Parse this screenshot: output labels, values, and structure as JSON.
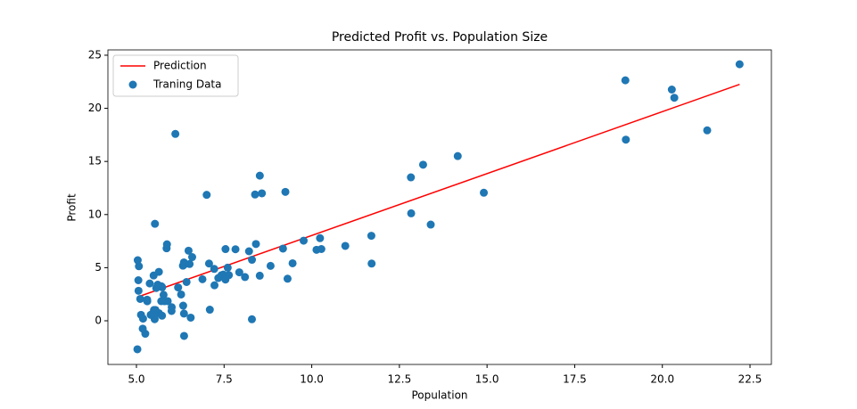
{
  "chart_data": {
    "type": "scatter",
    "title": "Predicted Profit vs. Population Size",
    "x_label": "Population",
    "y_label": "Profit",
    "xlim": [
      4.186,
      23.11
    ],
    "ylim": [
      -4.11,
      25.5
    ],
    "xticks": [
      {
        "value": 5,
        "label": "5.0"
      },
      {
        "value": 7.5,
        "label": "7.5"
      },
      {
        "value": 10,
        "label": "10.0"
      },
      {
        "value": 12.5,
        "label": "12.5"
      },
      {
        "value": 15,
        "label": "15.0"
      },
      {
        "value": 17.5,
        "label": "17.5"
      },
      {
        "value": 20,
        "label": "20.0"
      },
      {
        "value": 22.5,
        "label": "22.5"
      }
    ],
    "yticks": [
      0,
      5,
      10,
      15,
      20,
      25
    ],
    "legend": "upper left",
    "series": [
      {
        "name": "Prediction",
        "type": "line",
        "color": "#ff0000",
        "x": [
          5.0269,
          22.203
        ],
        "values": [
          2.2323,
          22.255
        ]
      },
      {
        "name": "Traning Data",
        "type": "scatter",
        "color": "#1f77b4",
        "x": [
          6.1101,
          5.5277,
          8.5186,
          7.0032,
          5.8598,
          8.3829,
          7.4764,
          8.5781,
          6.4862,
          5.0546,
          5.7107,
          14.164,
          5.734,
          8.4084,
          5.6407,
          5.3794,
          6.3654,
          5.1301,
          6.4296,
          7.0708,
          6.1891,
          20.27,
          5.4901,
          6.3261,
          5.5649,
          18.945,
          12.828,
          10.957,
          13.176,
          22.203,
          5.2524,
          6.5894,
          9.2482,
          5.8918,
          8.2111,
          7.9334,
          8.0959,
          5.6063,
          12.836,
          6.3534,
          5.4069,
          6.8825,
          11.708,
          5.7737,
          7.8247,
          7.0931,
          5.0702,
          5.8014,
          11.7,
          5.5416,
          7.5402,
          5.3077,
          7.4239,
          7.6031,
          6.3328,
          6.3589,
          6.2742,
          5.6397,
          9.3102,
          9.4536,
          8.8254,
          5.1793,
          21.279,
          14.908,
          18.959,
          7.2182,
          8.2951,
          10.236,
          5.4994,
          20.341,
          10.136,
          7.3345,
          6.0062,
          7.2259,
          5.0269,
          6.5479,
          7.5386,
          5.0365,
          10.274,
          5.1077,
          5.7292,
          5.1884,
          6.3557,
          9.7687,
          6.5159,
          8.5172,
          9.1802,
          6.002,
          5.5204,
          5.0594,
          5.7077,
          7.6366,
          5.8707,
          5.3054,
          8.2934,
          13.394,
          5.4369
        ],
        "values": [
          17.592,
          9.1302,
          13.662,
          11.854,
          6.8233,
          11.886,
          4.3483,
          12,
          6.5987,
          3.8166,
          3.2522,
          15.505,
          3.1551,
          7.2258,
          0.71618,
          3.5129,
          5.3048,
          0.56077,
          3.6518,
          5.3893,
          3.1386,
          21.767,
          4.263,
          5.1875,
          3.0825,
          22.638,
          13.501,
          7.0467,
          14.692,
          24.147,
          -1.22,
          5.9966,
          12.134,
          1.8495,
          6.5426,
          4.5623,
          4.1164,
          3.3928,
          10.117,
          5.4974,
          0.55657,
          3.9115,
          5.3854,
          2.4406,
          6.7318,
          1.0463,
          5.1337,
          1.844,
          8.0043,
          1.0179,
          6.7504,
          1.8396,
          4.2885,
          4.9981,
          1.4233,
          -1.4211,
          2.4756,
          4.6042,
          3.9624,
          5.4141,
          5.1694,
          -0.74279,
          17.929,
          12.054,
          17.054,
          4.8852,
          5.7442,
          7.7754,
          1.0173,
          20.992,
          6.6799,
          4.0259,
          1.2784,
          3.3411,
          -2.6807,
          0.29678,
          3.8845,
          5.7014,
          6.7526,
          2.0576,
          0.47953,
          0.20421,
          0.67861,
          7.5435,
          5.3436,
          4.2415,
          6.7981,
          0.92695,
          0.152,
          2.8214,
          1.8451,
          4.2959,
          7.2029,
          1.9869,
          0.14454,
          9.0551,
          0.61705
        ]
      }
    ]
  }
}
